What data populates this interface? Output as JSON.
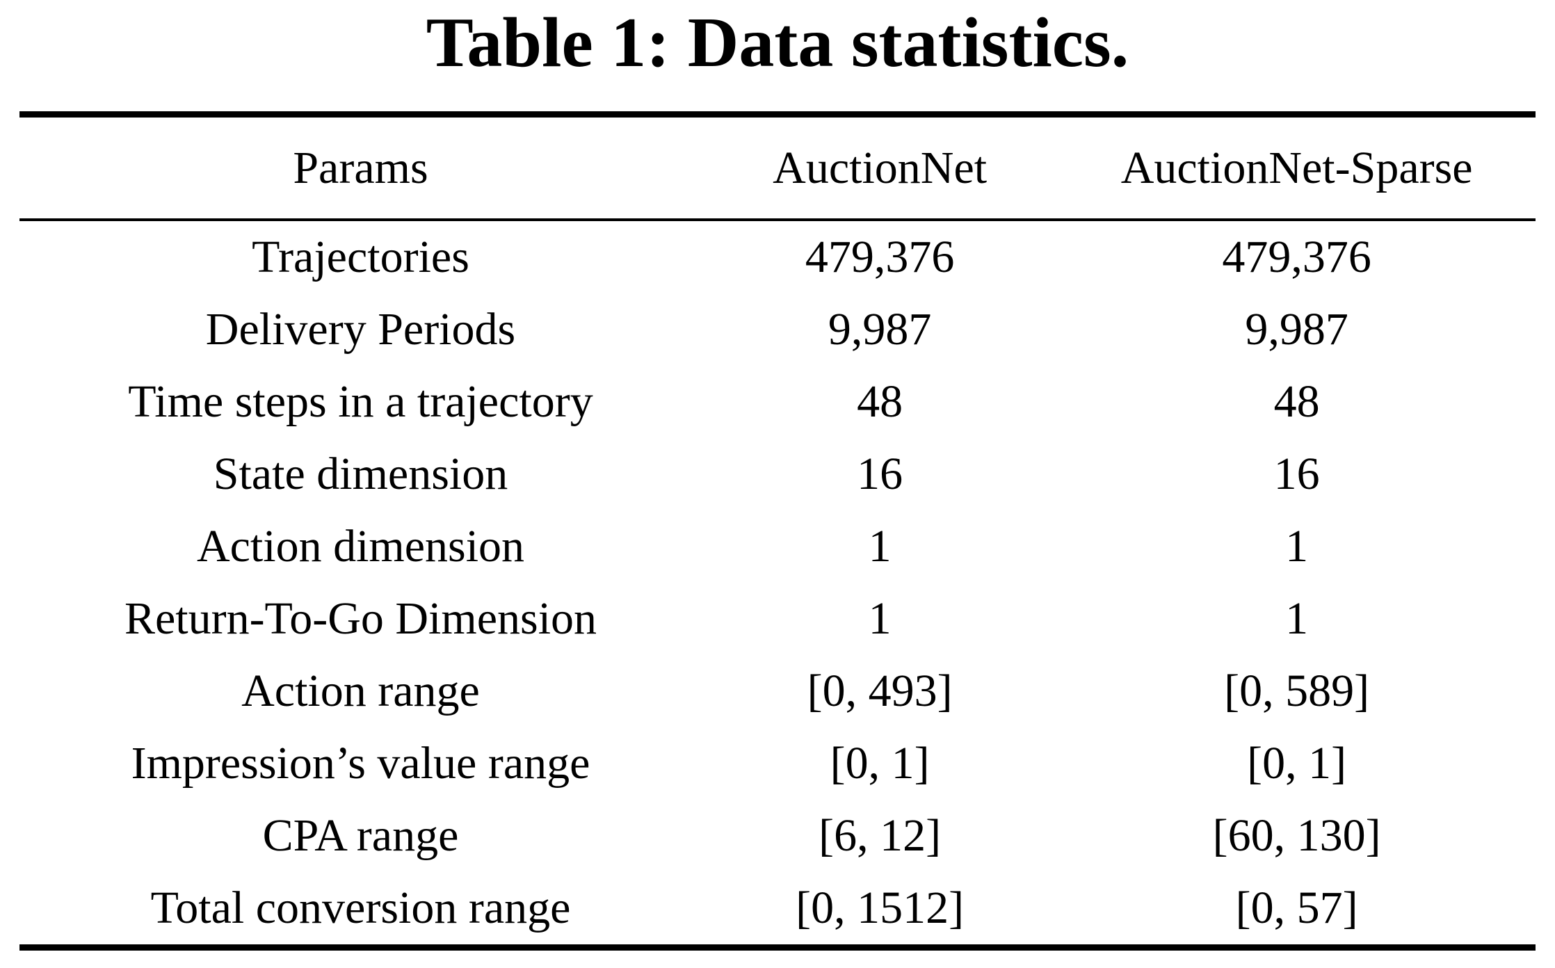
{
  "page": {
    "background_color": "#ffffff",
    "text_color": "#000000",
    "rule_color": "#000000"
  },
  "table": {
    "title": "Table 1: Data statistics.",
    "columns": [
      "Params",
      "AuctionNet",
      "AuctionNet-Sparse"
    ],
    "rows": [
      [
        "Trajectories",
        "479,376",
        "479,376"
      ],
      [
        "Delivery Periods",
        "9,987",
        "9,987"
      ],
      [
        "Time steps in a trajectory",
        "48",
        "48"
      ],
      [
        "State dimension",
        "16",
        "16"
      ],
      [
        "Action dimension",
        "1",
        "1"
      ],
      [
        "Return-To-Go Dimension",
        "1",
        "1"
      ],
      [
        "Action range",
        "[0, 493]",
        "[0, 589]"
      ],
      [
        "Impression’s value range",
        "[0, 1]",
        "[0, 1]"
      ],
      [
        "CPA range",
        "[6, 12]",
        "[60, 130]"
      ],
      [
        "Total conversion range",
        "[0, 1512]",
        "[0, 57]"
      ]
    ]
  }
}
